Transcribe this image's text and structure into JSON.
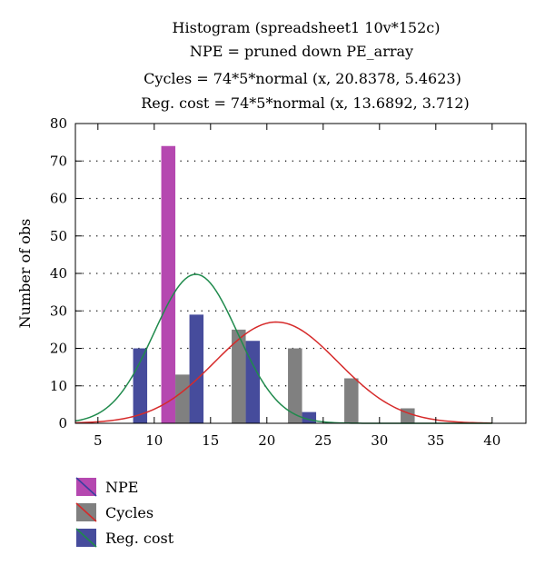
{
  "chart_data": {
    "type": "bar",
    "title_lines": [
      "Histogram (spreadsheet1 10v*152c)",
      "NPE = pruned down PE_array",
      "Cycles = 74*5*normal (x, 20.8378, 5.4623)",
      "Reg. cost = 74*5*normal (x, 13.6892, 3.712)"
    ],
    "ylabel": "Number of obs",
    "xlabel": "",
    "xlim": [
      3,
      43
    ],
    "ylim": [
      0,
      80
    ],
    "x_ticks": [
      5,
      10,
      15,
      20,
      25,
      30,
      35,
      40
    ],
    "y_ticks": [
      0,
      10,
      20,
      30,
      40,
      50,
      60,
      70,
      80
    ],
    "grid": "horizontal dotted",
    "bin_width": 5,
    "bar_width": 1.25,
    "series": [
      {
        "name": "NPE",
        "color": "#b548b0",
        "x": [
          11.25
        ],
        "values": [
          74
        ]
      },
      {
        "name": "Cycles",
        "color": "#808080",
        "x": [
          12.5,
          17.5,
          22.5,
          27.5,
          32.5
        ],
        "values": [
          13,
          25,
          20,
          12,
          4
        ]
      },
      {
        "name": "Reg. cost",
        "color": "#464c9c",
        "x": [
          8.75,
          13.75,
          18.75,
          23.75
        ],
        "values": [
          20,
          29,
          22,
          3
        ]
      }
    ],
    "fits": [
      {
        "series": "Cycles",
        "color": "#d62a2a",
        "mean": 20.8378,
        "sd": 5.4623,
        "scale": 370
      },
      {
        "series": "Reg. cost",
        "color": "#1f8a4c",
        "mean": 13.6892,
        "sd": 3.712,
        "scale": 370
      }
    ],
    "legend": {
      "placement": "bottom-left",
      "entries": [
        {
          "label": "NPE",
          "fill": "#b548b0",
          "line": "#3a3fa0"
        },
        {
          "label": "Cycles",
          "fill": "#808080",
          "line": "#d62a2a"
        },
        {
          "label": "Reg. cost",
          "fill": "#464c9c",
          "line": "#1f8a4c"
        }
      ]
    }
  }
}
